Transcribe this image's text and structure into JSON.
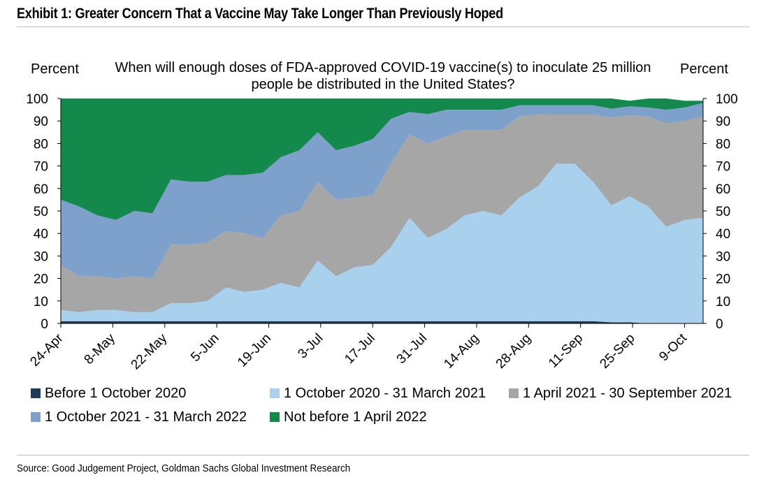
{
  "header": {
    "exhibit_title": "Exhibit 1: Greater Concern That a Vaccine May Take Longer Than Previously Hoped"
  },
  "footer": {
    "source": "Source: Good Judgement Project, Goldman Sachs Global Investment Research"
  },
  "colors": {
    "before_oct_2020": "#1f3b57",
    "oct2020_mar2021": "#a9d1ee",
    "apr2021_sep2021": "#a6a6a6",
    "oct2021_mar2022": "#7ea1cc",
    "not_before_apr2022": "#138a4c"
  },
  "chart_data": {
    "type": "area",
    "stacked": true,
    "title": "When will enough doses of FDA-approved COVID-19 vaccine(s) to inoculate 25 million people be distributed in the United States?",
    "ylabel_left": "Percent",
    "ylabel_right": "Percent",
    "ylim": [
      0,
      100
    ],
    "yticks": [
      0,
      10,
      20,
      30,
      40,
      50,
      60,
      70,
      80,
      90,
      100
    ],
    "xticks": [
      "24-Apr",
      "8-May",
      "22-May",
      "5-Jun",
      "19-Jun",
      "3-Jul",
      "17-Jul",
      "31-Jul",
      "14-Aug",
      "28-Aug",
      "11-Sep",
      "25-Sep",
      "9-Oct"
    ],
    "x_start": "24-Apr",
    "x_end": "14-Oct",
    "legend_position": "bottom",
    "x": [
      "24-Apr",
      "29-Apr",
      "4-May",
      "9-May",
      "14-May",
      "19-May",
      "24-May",
      "29-May",
      "3-Jun",
      "8-Jun",
      "13-Jun",
      "18-Jun",
      "23-Jun",
      "28-Jun",
      "3-Jul",
      "8-Jul",
      "13-Jul",
      "18-Jul",
      "23-Jul",
      "28-Jul",
      "2-Aug",
      "7-Aug",
      "12-Aug",
      "17-Aug",
      "22-Aug",
      "27-Aug",
      "1-Sep",
      "6-Sep",
      "11-Sep",
      "16-Sep",
      "21-Sep",
      "26-Sep",
      "1-Oct",
      "6-Oct",
      "11-Oct",
      "14-Oct"
    ],
    "series": [
      {
        "name": "Before 1 October 2020",
        "color": "#1f3b57",
        "values": [
          1,
          1,
          1,
          1,
          1,
          1,
          1,
          1,
          1,
          1,
          1,
          1,
          1,
          1,
          1,
          1,
          1,
          1,
          1,
          1,
          1,
          1,
          1,
          1,
          1,
          1,
          1,
          1,
          1,
          1,
          0.5,
          0.5,
          0,
          0,
          0,
          0
        ]
      },
      {
        "name": "1 October 2020 - 31 March 2021",
        "color": "#a9d1ee",
        "values": [
          5,
          4,
          5,
          5,
          4,
          4,
          8,
          8,
          9,
          15,
          13,
          14,
          17,
          15,
          27,
          20,
          24,
          25,
          33,
          46,
          37,
          41,
          47,
          49,
          47,
          55,
          60,
          70,
          70,
          62,
          52,
          56,
          52,
          43,
          46,
          47
        ]
      },
      {
        "name": "1 April 2021 - 30 September 2021",
        "color": "#a6a6a6",
        "values": [
          20,
          16,
          15,
          14,
          16,
          15,
          26,
          26,
          26,
          25,
          26,
          23,
          30,
          34,
          35,
          34,
          31,
          31,
          37,
          37,
          42,
          41,
          38,
          36,
          38,
          36,
          32,
          22,
          22,
          30,
          39,
          36,
          40,
          46,
          44,
          45
        ]
      },
      {
        "name": "1 October 2021 - 31 March 2022",
        "color": "#7ea1cc",
        "values": [
          29,
          31,
          27,
          26,
          29,
          29,
          29,
          28,
          27,
          25,
          26,
          29,
          26,
          27,
          22,
          22,
          23,
          25,
          20,
          10,
          13,
          12,
          9,
          9,
          9,
          5,
          4,
          4,
          4,
          4,
          4,
          4,
          4,
          6,
          6,
          6
        ]
      },
      {
        "name": "Not before 1 April 2022",
        "color": "#138a4c",
        "values": [
          45,
          48,
          52,
          54,
          50,
          51,
          36,
          37,
          37,
          34,
          34,
          33,
          26,
          23,
          15,
          23,
          21,
          18,
          9,
          6,
          7,
          5,
          5,
          5,
          5,
          3,
          3,
          3,
          3,
          3,
          4.5,
          2.5,
          4,
          5,
          3,
          1
        ]
      }
    ]
  }
}
